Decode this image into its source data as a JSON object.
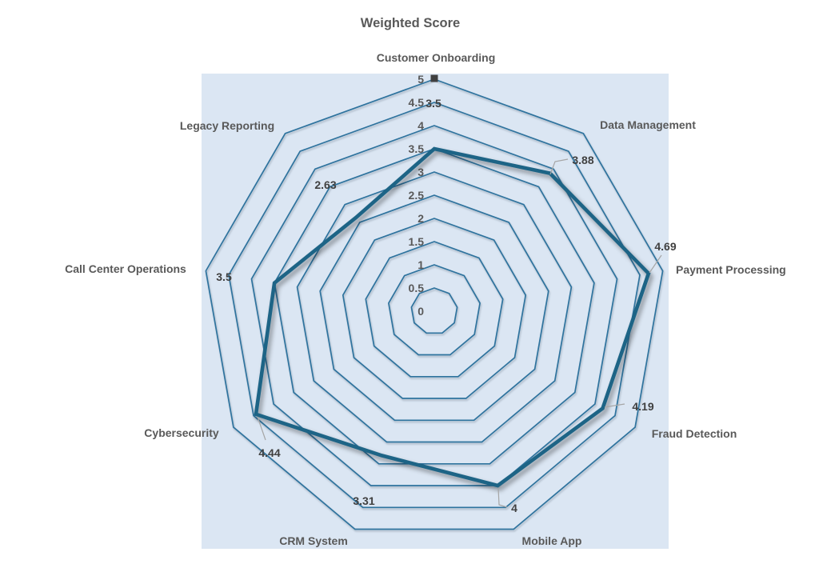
{
  "chart_data": {
    "type": "radar",
    "title": "Weighted Score",
    "categories": [
      "Customer Onboarding",
      "Data Management",
      "Payment Processing",
      "Fraud Detection",
      "Mobile App",
      "CRM System",
      "Cybersecurity",
      "Call Center Operations",
      "Legacy Reporting"
    ],
    "series": [
      {
        "name": "Weighted Score",
        "values": [
          3.5,
          3.88,
          4.69,
          4.19,
          4,
          3.31,
          4.44,
          3.5,
          2.63
        ]
      }
    ],
    "data_labels": [
      "3.5",
      "3.88",
      "4.69",
      "4.19",
      "4",
      "3.31",
      "4.44",
      "3.5",
      "2.63"
    ],
    "axis": {
      "min": 0,
      "max": 5,
      "step": 0.5,
      "ticks": [
        "0",
        "0.5",
        "1",
        "1.5",
        "2",
        "2.5",
        "3",
        "3.5",
        "4",
        "4.5",
        "5"
      ]
    },
    "grid": true,
    "legend": "none",
    "colors": {
      "plot_bg": "#dbe6f3",
      "gridline": "#2e739e",
      "series_line": "#1d6486",
      "title": "#595959",
      "category_label": "#595959",
      "tick_label": "#595959",
      "data_label": "#404040",
      "leader": "#a6a6a6",
      "marker": "#404040"
    }
  }
}
